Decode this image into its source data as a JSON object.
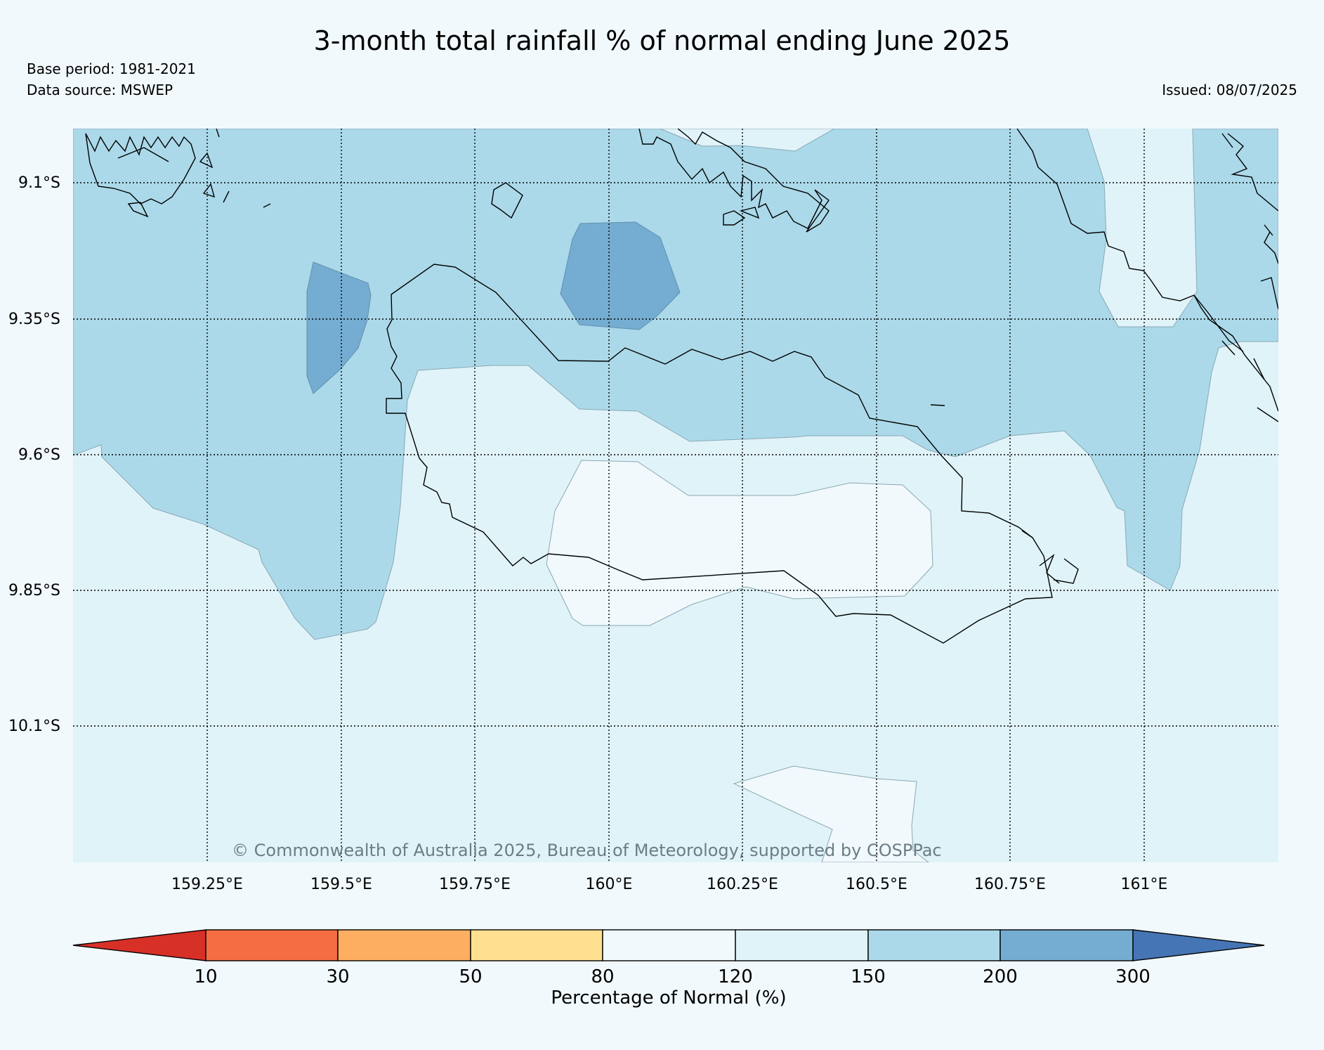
{
  "title": "3-month total rainfall % of normal ending June 2025",
  "base_period": "Base period: 1981-2021",
  "data_source": "Data source: MSWEP",
  "issued": "Issued: 08/07/2025",
  "copyright": "© Commonwealth of Australia 2025, Bureau of Meteorology, supported by COSPPac",
  "map": {
    "lat_labels": [
      "9.1°S",
      "9.35°S",
      "9.6°S",
      "9.85°S",
      "10.1°S"
    ],
    "lon_labels": [
      "159.25°E",
      "159.5°E",
      "159.75°E",
      "160°E",
      "160.25°E",
      "160.5°E",
      "160.75°E",
      "161°E"
    ],
    "ocean_color": "#e0f3f8",
    "colors": {
      "120_150": "#e0f3f8",
      "150_200": "#abd9e9",
      "200_300": "#74add1",
      "80_120": "#f1f9fc"
    }
  },
  "colorbar": {
    "title": "Percentage of Normal (%)",
    "ticks": [
      "10",
      "30",
      "50",
      "80",
      "120",
      "150",
      "200",
      "300"
    ],
    "colors": [
      "#d73027",
      "#f46d43",
      "#fdae61",
      "#fee090",
      "#f1f9fc",
      "#e0f3f8",
      "#abd9e9",
      "#74add1",
      "#4575b4"
    ]
  }
}
